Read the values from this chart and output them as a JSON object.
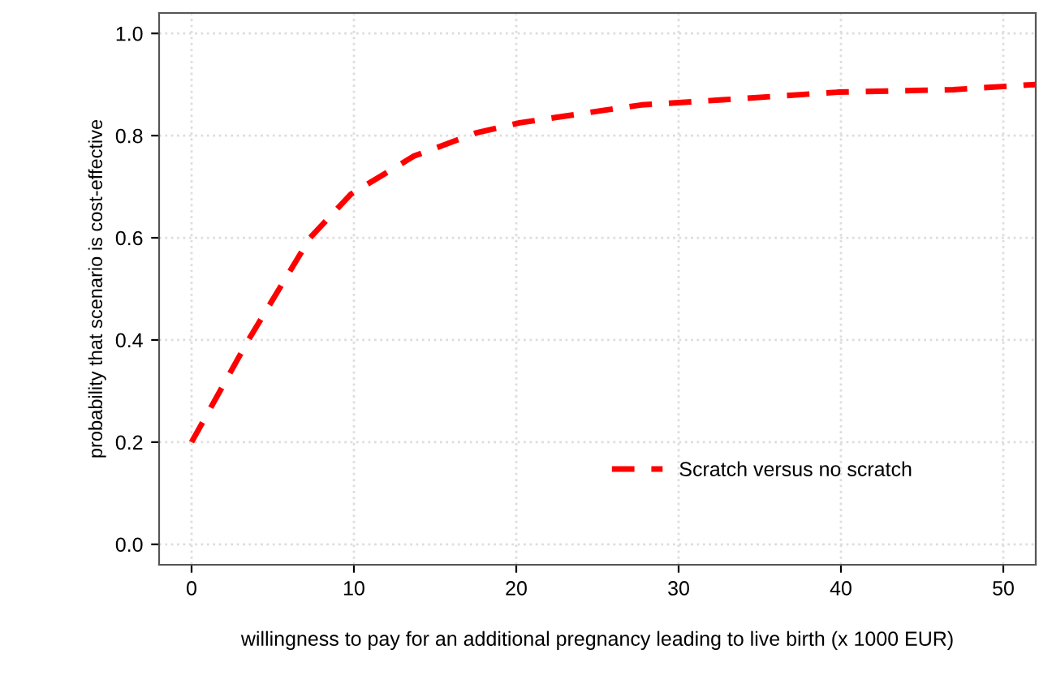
{
  "chart_data": {
    "type": "line",
    "xlabel": "willingness to pay for an additional pregnancy leading to live birth (x 1000 EUR)",
    "ylabel": "probability that scenario is cost-effective",
    "series": [
      {
        "name": "Scratch versus no scratch",
        "color": "#ff0000",
        "x": [
          0,
          3.5,
          7.3,
          9.8,
          13.7,
          17.5,
          20.2,
          25.5,
          27.7,
          32.7,
          39.8,
          46.9,
          52
        ],
        "values": [
          0.2,
          0.4,
          0.6,
          0.685,
          0.76,
          0.805,
          0.825,
          0.85,
          0.86,
          0.87,
          0.885,
          0.89,
          0.9
        ]
      }
    ],
    "xlim": [
      -2,
      52
    ],
    "ylim": [
      -0.04,
      1.04
    ],
    "xticks": [
      0,
      10,
      20,
      30,
      40,
      50
    ],
    "yticks": [
      {
        "value": 0,
        "label": "0.0"
      },
      0.2,
      0.4,
      0.6,
      0.8,
      {
        "value": 1,
        "label": "1.0"
      }
    ],
    "grid": true,
    "legend": "bottom right",
    "line_style": "dashed",
    "marker": "none"
  }
}
